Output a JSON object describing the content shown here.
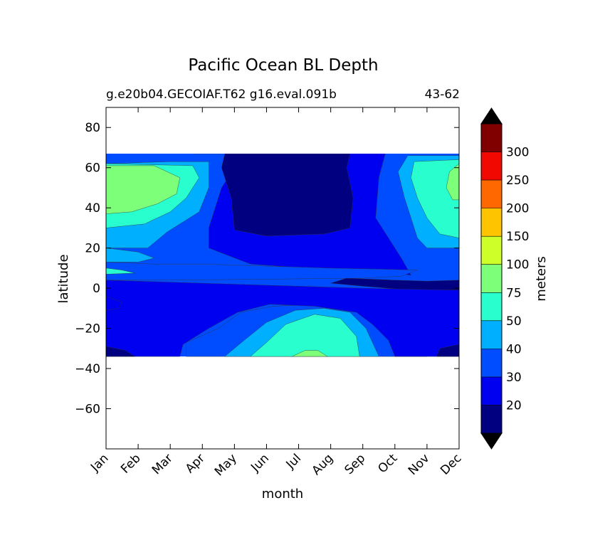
{
  "chart_data": {
    "type": "heatmap",
    "title": "Pacific Ocean BL Depth",
    "subtitle_left": "g.e20b04.GECOIAF.T62 g16.eval.091b",
    "subtitle_right": "43-62",
    "xlabel": "month",
    "ylabel": "latitude",
    "x_categories": [
      "Jan",
      "Feb",
      "Mar",
      "Apr",
      "May",
      "Jun",
      "Jul",
      "Aug",
      "Sep",
      "Oct",
      "Nov",
      "Dec"
    ],
    "ylim": [
      -80,
      90
    ],
    "yticks": [
      80,
      60,
      40,
      20,
      0,
      -20,
      -40,
      -60
    ],
    "ytick_labels": [
      "80",
      "60",
      "40",
      "20",
      "0",
      "−20",
      "−40",
      "−60"
    ],
    "data_lat_range": [
      -34,
      67
    ],
    "grid": false,
    "colorbar": {
      "label": "meters",
      "levels": [
        20,
        30,
        40,
        50,
        75,
        100,
        150,
        200,
        250,
        300
      ],
      "tick_labels": [
        "20",
        "30",
        "40",
        "50",
        "75",
        "100",
        "150",
        "200",
        "250",
        "300"
      ],
      "colors": [
        "#000080",
        "#0000f1",
        "#004dff",
        "#00b0ff",
        "#29ffce",
        "#7dff7a",
        "#ceff29",
        "#ffc400",
        "#ff6800",
        "#f10800",
        "#800000"
      ],
      "extend_low_color": "#000000",
      "extend_high_color": "#000000"
    },
    "regions": [
      {
        "band": "under 20",
        "value_class": 0,
        "location": "poleward of ~25N, mid-May to mid-Sep"
      },
      {
        "band": "under 20",
        "value_class": 0,
        "location": "equatorial band near 0-4N, Aug to Dec"
      },
      {
        "band": "20-30",
        "value_class": 1,
        "location": "northern hemisphere Apr-Oct; southern hemisphere Oct-Feb"
      },
      {
        "band": "30-40",
        "value_class": 2,
        "location": "transition zones"
      },
      {
        "band": "40-50",
        "value_class": 3,
        "location": "transition zones"
      },
      {
        "band": "50-75",
        "value_class": 4,
        "location": "north Pacific winter; south Pacific Jun-Aug"
      },
      {
        "band": "75-100",
        "value_class": 5,
        "location": "30-60N, Jan-Feb and Nov-Dec; small patch near 30S in July"
      }
    ]
  }
}
